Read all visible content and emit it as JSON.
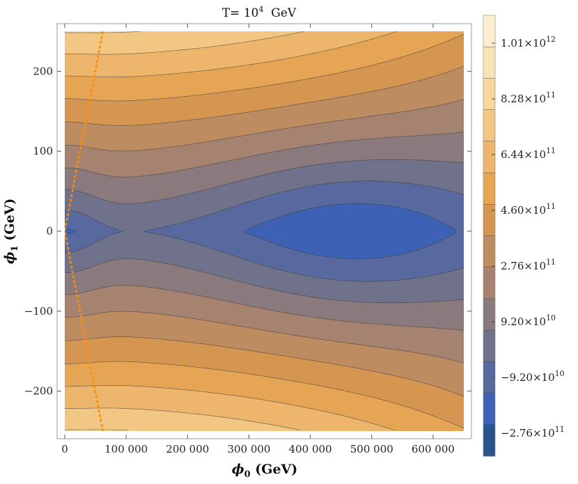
{
  "chart_data": {
    "type": "contour",
    "title_prefix": "T= ",
    "title_base": "10",
    "title_exp": "4",
    "title_suffix": "  GeV",
    "xlabel_symbol": "ϕ",
    "xlabel_sub": "0",
    "xlabel_unit": " (GeV)",
    "ylabel_symbol": "ϕ",
    "ylabel_sub": "1",
    "ylabel_unit": " (GeV)",
    "xlim": [
      0,
      650000
    ],
    "ylim": [
      -250,
      250
    ],
    "xticks": [
      0,
      100000,
      200000,
      300000,
      400000,
      500000,
      600000
    ],
    "xtick_labels": [
      "0",
      "100 000",
      "200 000",
      "300 000",
      "400 000",
      "500 000",
      "600 000"
    ],
    "yticks": [
      -200,
      -100,
      0,
      100,
      200
    ],
    "ytick_labels": [
      "−200",
      "−100",
      "0",
      "100",
      "200"
    ],
    "colorbar_ticks": [
      {
        "mantissa": "1.01",
        "exp": "12",
        "value": 1010000000000.0
      },
      {
        "mantissa": "8.28",
        "exp": "11",
        "value": 828000000000.0
      },
      {
        "mantissa": "6.44",
        "exp": "11",
        "value": 644000000000.0
      },
      {
        "mantissa": "4.60",
        "exp": "11",
        "value": 460000000000.0
      },
      {
        "mantissa": "2.76",
        "exp": "11",
        "value": 276000000000.0
      },
      {
        "mantissa": "9.20",
        "exp": "10",
        "value": 92000000000.0
      },
      {
        "mantissa": "−9.20",
        "exp": "10",
        "value": -92000000000.0
      },
      {
        "mantissa": "−2.76",
        "exp": "11",
        "value": -276000000000.0
      }
    ],
    "color_levels": [
      "#27548a",
      "#3d62b5",
      "#57699f",
      "#70718a",
      "#8a7a7e",
      "#a58370",
      "#bd8c60",
      "#d59652",
      "#e6a555",
      "#edb66c",
      "#f2c784",
      "#f6d79d",
      "#f9e4b6",
      "#fbefcd"
    ],
    "minimum": {
      "phi0": 465000,
      "phi1": 0
    },
    "dashed_curve": {
      "color": "#ff8c00",
      "points": [
        [
          0,
          0
        ],
        [
          62000,
          250
        ],
        [
          62000,
          -250
        ]
      ]
    }
  }
}
